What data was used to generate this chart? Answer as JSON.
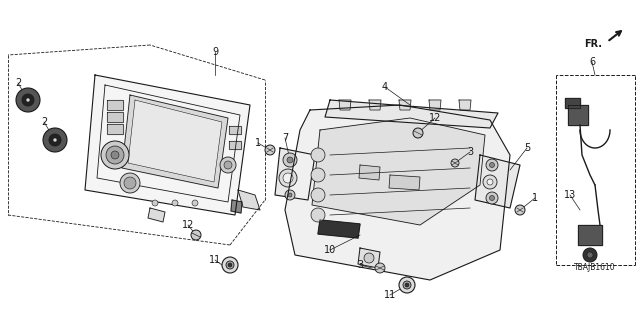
{
  "background_color": "#ffffff",
  "diagram_code": "TBAJB1610",
  "line_color": "#1a1a1a",
  "fig_width": 6.4,
  "fig_height": 3.2,
  "dpi": 100
}
